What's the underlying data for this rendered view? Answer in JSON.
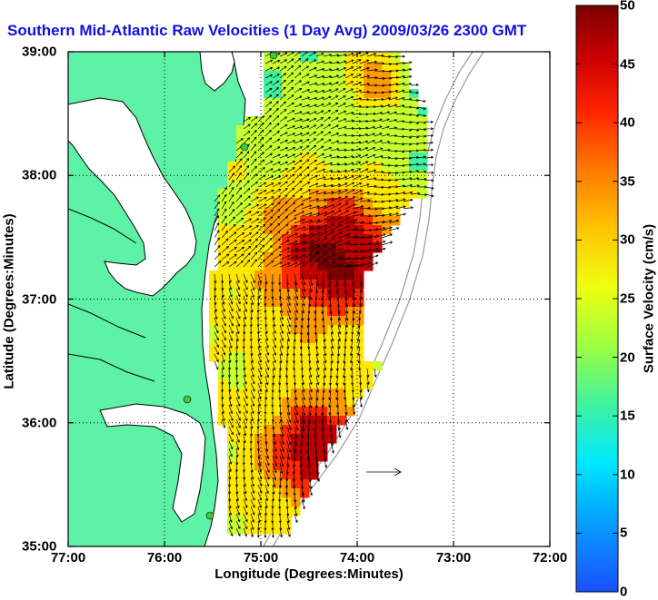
{
  "title": "Southern Mid-Atlantic Raw Velocities (1 Day Avg) 2009/03/26 2300 GMT",
  "title_color": "#1010e0",
  "map": {
    "x_label": "Longitude (Degrees:Minutes)",
    "y_label": "Latitude (Degrees:Minutes)",
    "x_ticks": [
      "77:00",
      "76:00",
      "75:00",
      "74:00",
      "73:00",
      "72:00"
    ],
    "y_ticks": [
      "39:00",
      "38:00",
      "37:00",
      "36:00",
      "35:00"
    ],
    "lon_range": [
      -77,
      -72
    ],
    "lat_range": [
      35,
      39
    ],
    "land_color": "#5ef2a6",
    "water_color": "#ffffff",
    "grid": true
  },
  "colorbar": {
    "label": "Surface Velocity (cm/s)",
    "ticks": [
      "50",
      "45",
      "40",
      "35",
      "30",
      "25",
      "20",
      "15",
      "10",
      "5",
      "0"
    ],
    "range": [
      0,
      50
    ],
    "colors": [
      "#1a50ff",
      "#00e5ff",
      "#40f2a0",
      "#c8ff30",
      "#ffe800",
      "#ff9a00",
      "#ff2a00",
      "#c00000",
      "#7a0000"
    ]
  }
}
